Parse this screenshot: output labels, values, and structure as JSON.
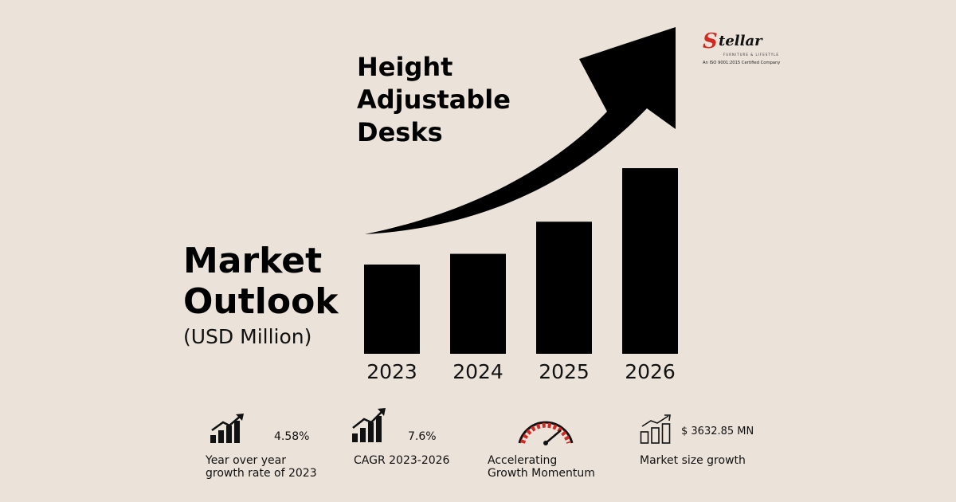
{
  "chart_data": {
    "type": "bar",
    "title": "Height Adjustable Desks",
    "categories": [
      "2023",
      "2024",
      "2025",
      "2026"
    ],
    "values": [
      1.0,
      1.12,
      1.48,
      2.08
    ],
    "value_note": "relative bar heights; axis not printed",
    "grid": false,
    "bar_color": "#000000",
    "has_growth_arrow": true
  },
  "header": {
    "title": "Height\nAdjustable\nDesks"
  },
  "outlook": {
    "title": "Market\nOutlook",
    "unit": "(USD Million)"
  },
  "logo": {
    "brand": "tellar",
    "brand_initial": "S",
    "tagline": "FURNITURE & LIFESTYLE",
    "cert": "An ISO 9001:2015 Certified Company"
  },
  "stats": [
    {
      "icon": "bar-growth-icon",
      "value": "4.58%",
      "label": "Year over year\ngrowth rate of 2023"
    },
    {
      "icon": "bar-growth-icon",
      "value": "7.6%",
      "label": "CAGR 2023-2026"
    },
    {
      "icon": "speedometer-icon",
      "value": "",
      "label": "Accelerating\nGrowth Momentum"
    },
    {
      "icon": "outline-bar-growth-icon",
      "value": "$ 3632.85 MN",
      "label": "Market size growth"
    }
  ],
  "colors": {
    "background": "#ebe2da",
    "bars": "#000000",
    "accent": "#d22a22"
  }
}
